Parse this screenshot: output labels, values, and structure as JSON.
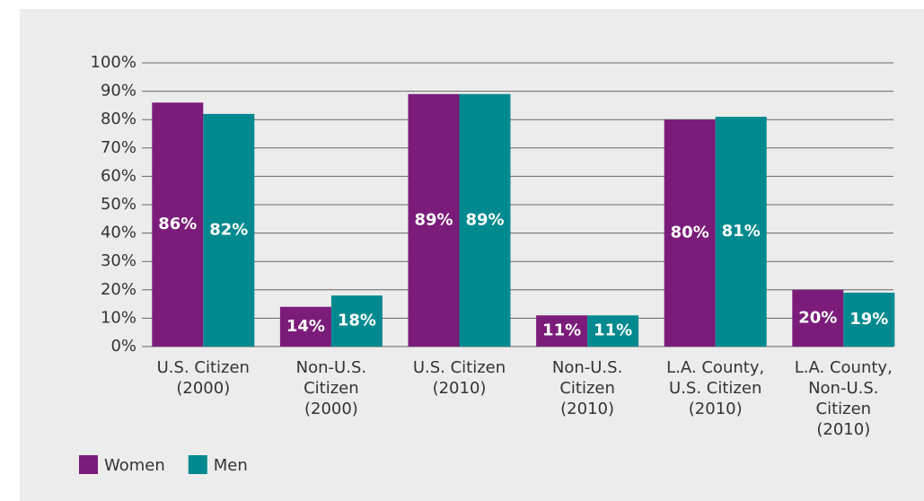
{
  "chart_data": {
    "type": "bar",
    "categories": [
      [
        "U.S. Citizen",
        "(2000)"
      ],
      [
        "Non-U.S.",
        "Citizen",
        "(2000)"
      ],
      [
        "U.S. Citizen",
        "(2010)"
      ],
      [
        "Non-U.S.",
        "Citizen",
        "(2010)"
      ],
      [
        "L.A. County,",
        "U.S. Citizen",
        "(2010)"
      ],
      [
        "L.A. County,",
        "Non-U.S.",
        "Citizen",
        "(2010)"
      ]
    ],
    "series": [
      {
        "name": "Women",
        "color": "#7b1c7b",
        "values": [
          86,
          14,
          89,
          11,
          80,
          20
        ],
        "value_labels": [
          "86%",
          "14%",
          "89%",
          "11%",
          "80%",
          "20%"
        ]
      },
      {
        "name": "Men",
        "color": "#008a8f",
        "values": [
          82,
          18,
          89,
          11,
          81,
          19
        ],
        "value_labels": [
          "82%",
          "18%",
          "89%",
          "11%",
          "81%",
          "19%"
        ]
      }
    ],
    "ylim": [
      0,
      100
    ],
    "yticks": [
      {
        "value": 0,
        "label": "0%"
      },
      {
        "value": 10,
        "label": "10%"
      },
      {
        "value": 20,
        "label": "20%"
      },
      {
        "value": 30,
        "label": "30%"
      },
      {
        "value": 40,
        "label": "40%"
      },
      {
        "value": 50,
        "label": "50%"
      },
      {
        "value": 60,
        "label": "60%"
      },
      {
        "value": 70,
        "label": "70%"
      },
      {
        "value": 80,
        "label": "80%"
      },
      {
        "value": 90,
        "label": "90%"
      },
      {
        "value": 100,
        "label": "100%"
      }
    ],
    "grid": true,
    "legend": "bottom-left"
  }
}
